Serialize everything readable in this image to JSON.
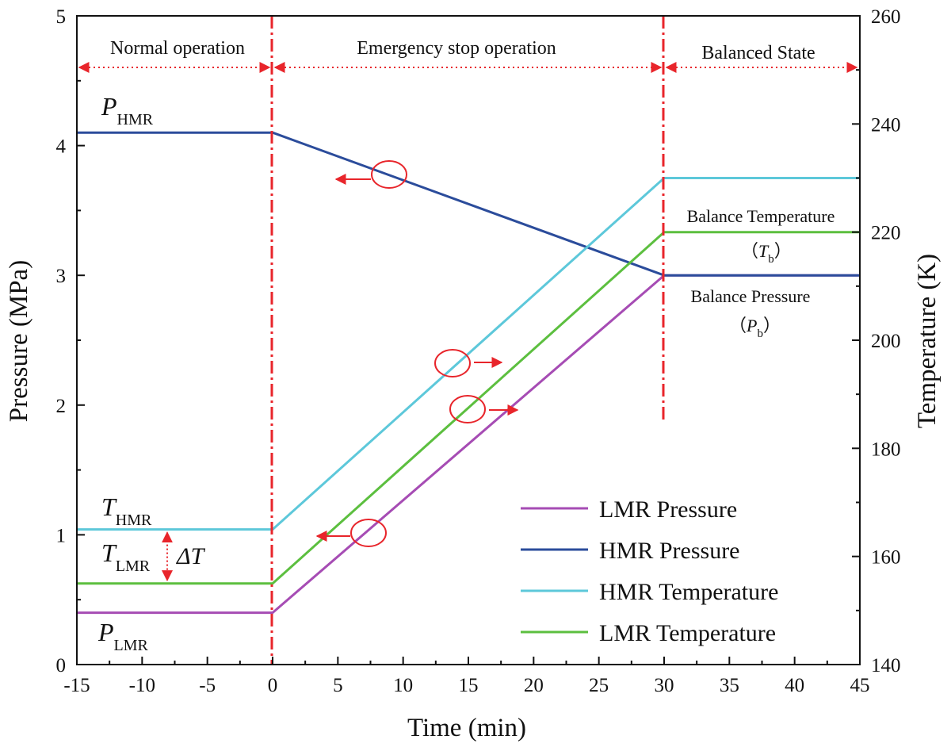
{
  "chart_data": {
    "type": "line",
    "xlabel": "Time (min)",
    "ylabel_left": "Pressure (MPa)",
    "ylabel_right": "Temperature (K)",
    "xlim": [
      -15,
      45
    ],
    "ylim_left": [
      0,
      5
    ],
    "ylim_right": [
      140,
      260
    ],
    "x_ticks": [
      -15,
      -10,
      -5,
      0,
      5,
      10,
      15,
      20,
      25,
      30,
      35,
      40,
      45
    ],
    "y_left_ticks": [
      0,
      1,
      2,
      3,
      4,
      5
    ],
    "y_right_ticks": [
      140,
      160,
      180,
      200,
      220,
      240,
      260
    ],
    "grid": false,
    "legend_position": "bottom-right",
    "series": [
      {
        "name": "LMR Pressure",
        "axis": "left",
        "color": "#A64CB4",
        "x": [
          -15,
          0,
          30,
          45
        ],
        "y": [
          0.4,
          0.4,
          3.0,
          3.0
        ]
      },
      {
        "name": "HMR Pressure",
        "axis": "left",
        "color": "#2B4C9B",
        "x": [
          -15,
          0,
          30,
          45
        ],
        "y": [
          4.1,
          4.1,
          3.0,
          3.0
        ]
      },
      {
        "name": "HMR Temperature",
        "axis": "right",
        "color": "#5DC8DA",
        "x": [
          -15,
          0,
          30,
          45
        ],
        "y": [
          165,
          165,
          230,
          230
        ]
      },
      {
        "name": "LMR Temperature",
        "axis": "right",
        "color": "#5CBF3F",
        "x": [
          -15,
          0,
          30,
          45
        ],
        "y": [
          155,
          155,
          220,
          220
        ]
      }
    ],
    "phase_dividers_x": [
      0,
      30
    ],
    "phases": [
      {
        "label": "Normal operation",
        "x_start": -15,
        "x_end": 0
      },
      {
        "label": "Emergency stop operation",
        "x_start": 0,
        "x_end": 30
      },
      {
        "label": "Balanced State",
        "x_start": 30,
        "x_end": 45
      }
    ],
    "annotations": {
      "p_hmr": {
        "main": "P",
        "sub": "HMR"
      },
      "t_hmr": {
        "main": "T",
        "sub": "HMR"
      },
      "t_lmr": {
        "main": "T",
        "sub": "LMR"
      },
      "delta_t": "ΔT",
      "p_lmr": {
        "main": "P",
        "sub": "LMR"
      },
      "balance_temperature": "Balance Temperature",
      "tb": {
        "open": "（",
        "main": "T",
        "sub": "b",
        "close": "）"
      },
      "balance_pressure": "Balance Pressure",
      "pb": {
        "open": "（",
        "main": "P",
        "sub": "b",
        "close": "）"
      }
    },
    "colors": {
      "divider": "#E8252B",
      "marker": "#E8252B",
      "axis": "#111111"
    }
  }
}
